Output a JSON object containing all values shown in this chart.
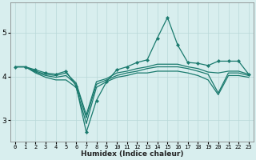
{
  "xlabel": "Humidex (Indice chaleur)",
  "xlim": [
    -0.5,
    23.5
  ],
  "ylim": [
    2.5,
    5.7
  ],
  "yticks": [
    3,
    4,
    5
  ],
  "xticks": [
    0,
    1,
    2,
    3,
    4,
    5,
    6,
    7,
    8,
    9,
    10,
    11,
    12,
    13,
    14,
    15,
    16,
    17,
    18,
    19,
    20,
    21,
    22,
    23
  ],
  "bg_color": "#d8eeee",
  "grid_color": "#b8d8d8",
  "line_color": "#1a7a6e",
  "line1_y": [
    4.22,
    4.22,
    4.15,
    4.08,
    4.05,
    4.12,
    3.78,
    2.72,
    3.45,
    3.88,
    4.15,
    4.22,
    4.32,
    4.38,
    4.88,
    5.35,
    4.72,
    4.32,
    4.3,
    4.25,
    4.35,
    4.35,
    4.35,
    4.05
  ],
  "line2_y": [
    4.22,
    4.22,
    4.12,
    4.05,
    4.02,
    4.08,
    3.85,
    3.12,
    3.88,
    3.95,
    4.08,
    4.12,
    4.18,
    4.22,
    4.28,
    4.28,
    4.28,
    4.22,
    4.18,
    4.1,
    4.08,
    4.12,
    4.12,
    4.05
  ],
  "line3_y": [
    4.22,
    4.22,
    4.1,
    4.02,
    3.98,
    4.02,
    3.82,
    3.05,
    3.82,
    3.92,
    4.02,
    4.08,
    4.12,
    4.18,
    4.22,
    4.22,
    4.22,
    4.18,
    4.12,
    4.05,
    3.62,
    4.08,
    4.08,
    4.02
  ],
  "line4_y": [
    4.22,
    4.22,
    4.08,
    3.98,
    3.92,
    3.92,
    3.75,
    2.92,
    3.75,
    3.88,
    3.98,
    4.02,
    4.08,
    4.08,
    4.12,
    4.12,
    4.12,
    4.08,
    4.02,
    3.92,
    3.58,
    4.02,
    4.02,
    3.98
  ]
}
